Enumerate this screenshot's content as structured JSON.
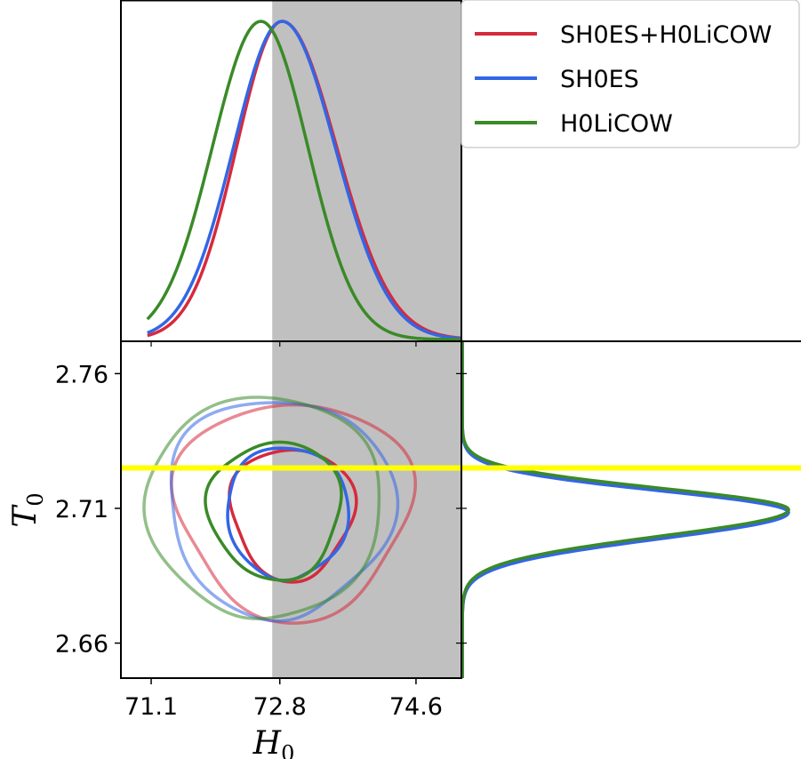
{
  "chart_data": {
    "type": "line",
    "layout": "triangle-corner-plot",
    "x_parameter": {
      "symbol": "H",
      "subscript": "0"
    },
    "y_parameter": {
      "symbol": "T",
      "subscript": "0"
    },
    "xlim": [
      70.7,
      75.2
    ],
    "ylim": [
      2.647,
      2.772
    ],
    "x_ticks": [
      71.1,
      72.8,
      74.6
    ],
    "x_tick_labels": [
      "71.1",
      "72.8",
      "74.6"
    ],
    "y_ticks": [
      2.66,
      2.71,
      2.76
    ],
    "y_tick_labels": [
      "2.66",
      "2.71",
      "2.76"
    ],
    "shaded_band": {
      "axis": "x",
      "from": 72.7,
      "to": 75.2,
      "color": "#c0c0c0"
    },
    "horizontal_line": {
      "y": 2.725,
      "color": "#ffff00"
    },
    "legend": {
      "position": "top-right"
    },
    "series": [
      {
        "name": "SH0ES+H0LiCOW",
        "color": "#d62a3c",
        "h0_mean": 72.83,
        "h0_sd_left": 0.6,
        "h0_sd_right": 0.72,
        "t0_mean": 2.7095,
        "t0_sd_low": 0.01,
        "t0_sd_high": 0.0078,
        "contour_68": {
          "cx": 72.96,
          "cy": 2.7075,
          "rx": 0.8,
          "ry": 0.0245
        },
        "contour_95": {
          "cx": 72.98,
          "cy": 2.7085,
          "rx": 1.53,
          "ry": 0.0405
        }
      },
      {
        "name": "SH0ES",
        "color": "#3366e6",
        "h0_mean": 72.83,
        "h0_sd_left": 0.64,
        "h0_sd_right": 0.7,
        "t0_mean": 2.7085,
        "t0_sd_low": 0.0098,
        "t0_sd_high": 0.008,
        "contour_68": {
          "cx": 72.9,
          "cy": 2.7075,
          "rx": 0.8,
          "ry": 0.0245
        },
        "contour_95": {
          "cx": 72.8,
          "cy": 2.709,
          "rx": 1.48,
          "ry": 0.0405
        }
      },
      {
        "name": "H0LiCOW",
        "color": "#3a8a28",
        "h0_mean": 72.55,
        "h0_sd_left": 0.64,
        "h0_sd_right": 0.62,
        "t0_mean": 2.7095,
        "t0_sd_low": 0.0098,
        "t0_sd_high": 0.008,
        "contour_68": {
          "cx": 72.74,
          "cy": 2.7085,
          "rx": 0.87,
          "ry": 0.0255
        },
        "contour_95": {
          "cx": 72.6,
          "cy": 2.709,
          "rx": 1.55,
          "ry": 0.041
        }
      }
    ]
  }
}
